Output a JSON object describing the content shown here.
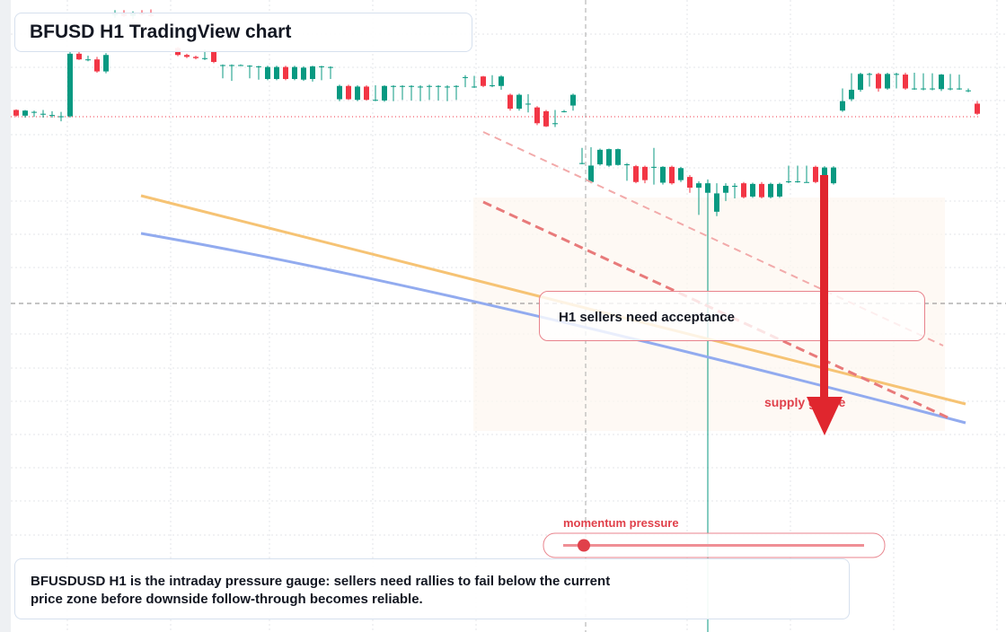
{
  "chart_data": {
    "type": "candlestick",
    "title": "BFUSD H1 TradingView chart",
    "annotation": "H1 sellers need acceptance",
    "gauge_label": "supply gauge",
    "momentum_label": "momentum pressure",
    "caption": "BFUSDUSD H1 is the intraday pressure gauge: sellers need rallies to fail below the current price zone before downside follow-through becomes reliable.",
    "up_color": "#089981",
    "down_color": "#f23645",
    "ylim": [
      0,
      100
    ],
    "candles": [
      [
        82.6,
        82.7,
        81.5,
        81.7
      ],
      [
        81.7,
        82.6,
        81.4,
        82.5
      ],
      [
        82.3,
        82.5,
        81.5,
        82.3
      ],
      [
        82.0,
        82.6,
        81.4,
        82.0
      ],
      [
        81.8,
        82.4,
        81.4,
        81.8
      ],
      [
        81.6,
        82.3,
        80.8,
        81.6
      ],
      [
        81.6,
        91.8,
        81.4,
        91.5
      ],
      [
        91.5,
        91.8,
        90.5,
        90.6
      ],
      [
        90.6,
        91.2,
        90.3,
        90.6
      ],
      [
        90.6,
        91.0,
        88.5,
        88.7
      ],
      [
        88.7,
        91.6,
        88.4,
        91.3
      ],
      [
        97.6,
        98.4,
        97.2,
        97.8
      ],
      [
        97.8,
        98.4,
        97.3,
        97.5
      ],
      [
        97.5,
        98.2,
        97.0,
        97.9
      ],
      [
        97.9,
        98.4,
        97.5,
        97.7
      ],
      [
        97.7,
        98.5,
        97.3,
        97.5
      ],
      null,
      null,
      [
        92.4,
        92.6,
        91.1,
        91.3
      ],
      [
        91.3,
        91.5,
        90.8,
        91.0
      ],
      [
        91.0,
        91.2,
        90.6,
        90.8
      ],
      [
        90.8,
        92.2,
        90.5,
        90.8
      ],
      [
        91.9,
        92.0,
        90.0,
        90.2
      ],
      [
        89.7,
        89.8,
        87.6,
        89.7
      ],
      [
        89.7,
        89.8,
        87.2,
        89.7
      ],
      [
        89.7,
        89.8,
        89.6,
        89.7
      ],
      [
        89.6,
        89.7,
        87.6,
        89.6
      ],
      [
        89.5,
        89.6,
        87.4,
        89.5
      ],
      [
        87.5,
        89.6,
        87.3,
        89.4
      ],
      [
        87.5,
        89.6,
        87.3,
        89.4
      ],
      [
        89.4,
        89.6,
        87.3,
        87.5
      ],
      [
        87.5,
        89.6,
        87.3,
        89.4
      ],
      [
        87.4,
        89.5,
        87.2,
        89.3
      ],
      [
        87.5,
        89.6,
        87.1,
        89.5
      ],
      [
        89.5,
        89.6,
        87.3,
        89.5
      ],
      [
        89.4,
        89.5,
        87.5,
        89.4
      ],
      [
        84.3,
        86.6,
        84.0,
        86.4
      ],
      [
        86.4,
        86.6,
        84.2,
        84.3
      ],
      [
        84.2,
        86.5,
        84.0,
        86.3
      ],
      [
        86.3,
        86.5,
        84.1,
        84.2
      ],
      [
        84.2,
        86.5,
        84.0,
        84.2
      ],
      [
        84.1,
        86.5,
        83.9,
        86.4
      ],
      [
        86.4,
        86.5,
        84.0,
        86.4
      ],
      [
        86.4,
        86.5,
        84.2,
        86.4
      ],
      [
        86.4,
        86.5,
        84.1,
        86.4
      ],
      [
        86.3,
        86.5,
        84.0,
        86.3
      ],
      [
        86.4,
        86.6,
        84.2,
        86.4
      ],
      [
        86.4,
        86.5,
        84.1,
        86.4
      ],
      [
        86.3,
        86.5,
        84.0,
        86.3
      ],
      [
        86.4,
        86.5,
        84.2,
        86.4
      ],
      [
        87.8,
        88.1,
        86.2,
        87.8
      ],
      [
        86.3,
        88.0,
        86.1,
        86.3
      ],
      [
        87.9,
        88.0,
        86.2,
        86.4
      ],
      [
        86.4,
        88.1,
        86.2,
        86.5
      ],
      [
        86.4,
        88.1,
        85.8,
        87.9
      ],
      [
        85.0,
        85.2,
        82.5,
        82.8
      ],
      [
        82.8,
        85.2,
        82.5,
        85.0
      ],
      [
        83.6,
        85.1,
        82.2,
        83.6
      ],
      [
        83.0,
        83.2,
        80.2,
        80.5
      ],
      [
        82.4,
        82.6,
        79.9,
        80.0
      ],
      [
        80.5,
        82.6,
        79.9,
        80.5
      ],
      [
        82.4,
        82.6,
        82.2,
        82.4
      ],
      [
        83.3,
        85.2,
        82.5,
        85.0
      ],
      [
        74.2,
        76.6,
        74.0,
        74.2
      ],
      [
        71.2,
        76.7,
        71.0,
        73.8
      ],
      [
        74.0,
        76.5,
        73.8,
        76.3
      ],
      [
        73.8,
        76.5,
        73.6,
        76.4
      ],
      [
        73.9,
        76.5,
        73.8,
        76.4
      ],
      [
        74.0,
        74.2,
        71.4,
        74.0
      ],
      [
        73.7,
        73.9,
        71.0,
        71.2
      ],
      [
        73.6,
        73.8,
        71.0,
        71.5
      ],
      [
        73.6,
        76.6,
        70.8,
        73.6
      ],
      [
        71.1,
        73.7,
        70.8,
        73.6
      ],
      [
        73.6,
        73.8,
        70.8,
        71.0
      ],
      [
        71.5,
        73.6,
        71.2,
        73.4
      ],
      [
        72.0,
        72.3,
        69.5,
        70.3
      ],
      [
        70.3,
        71.3,
        66.0,
        71.0
      ],
      [
        69.5,
        71.6,
        0.0,
        71.0
      ],
      [
        66.5,
        71.0,
        65.8,
        69.4
      ],
      [
        69.5,
        71.0,
        68.2,
        70.6
      ],
      [
        70.6,
        71.0,
        68.6,
        70.6
      ],
      [
        71.0,
        71.2,
        68.6,
        68.8
      ],
      [
        68.9,
        71.1,
        68.7,
        70.9
      ],
      [
        70.9,
        71.2,
        68.6,
        68.8
      ],
      [
        68.8,
        71.1,
        68.6,
        70.9
      ],
      [
        68.9,
        71.1,
        68.7,
        70.9
      ],
      [
        71.3,
        73.8,
        71.0,
        71.3
      ],
      [
        71.3,
        73.8,
        71.1,
        71.3
      ],
      [
        71.2,
        73.8,
        71.1,
        71.2
      ],
      [
        73.6,
        73.8,
        71.0,
        71.2
      ],
      [
        71.2,
        73.7,
        71.0,
        73.5
      ],
      [
        71.0,
        73.7,
        70.8,
        73.5
      ],
      [
        82.5,
        86.0,
        82.3,
        84.0
      ],
      [
        84.3,
        88.4,
        84.0,
        85.8
      ],
      [
        85.8,
        88.5,
        85.5,
        88.3
      ],
      [
        88.3,
        88.5,
        86.3,
        88.3
      ],
      [
        88.3,
        88.5,
        85.5,
        86.0
      ],
      [
        86.0,
        88.5,
        85.8,
        88.3
      ],
      [
        88.3,
        88.5,
        86.0,
        88.3
      ],
      [
        88.2,
        88.5,
        85.8,
        86.0
      ],
      [
        86.0,
        88.5,
        85.8,
        86.0
      ],
      [
        86.0,
        88.4,
        85.7,
        86.0
      ],
      [
        86.0,
        88.4,
        85.7,
        86.0
      ],
      [
        85.9,
        88.3,
        85.6,
        88.2
      ],
      [
        86.0,
        88.3,
        85.7,
        86.0
      ],
      [
        86.0,
        88.2,
        85.8,
        86.0
      ],
      [
        85.7,
        86.0,
        85.4,
        85.7
      ],
      [
        83.6,
        84.0,
        81.8,
        82.0
      ]
    ]
  }
}
